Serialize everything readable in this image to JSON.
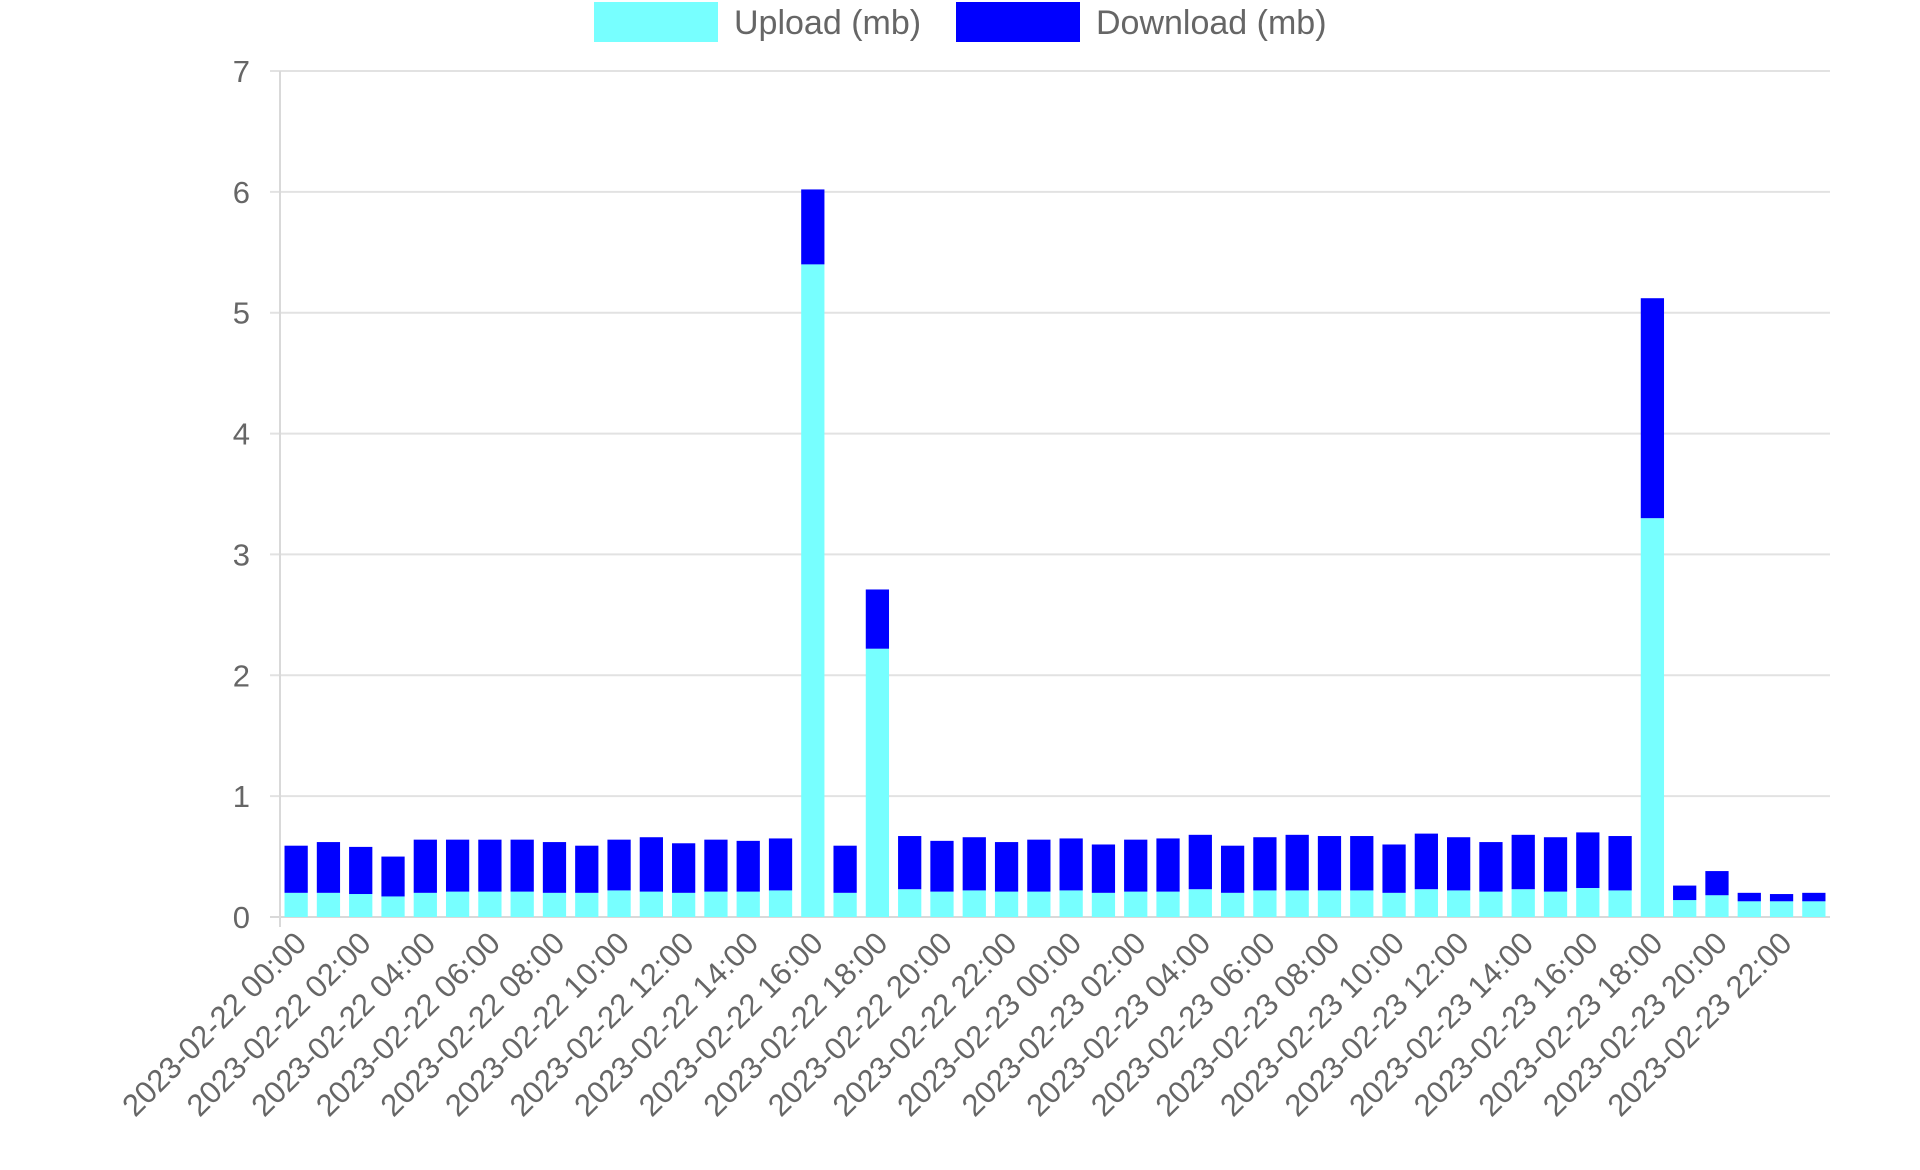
{
  "chart_data": {
    "type": "bar",
    "stacked": true,
    "title": "",
    "xlabel": "",
    "ylabel": "",
    "ylim": [
      0,
      7
    ],
    "yticks": [
      0,
      1,
      2,
      3,
      4,
      5,
      6,
      7
    ],
    "grid": true,
    "legend_position": "top",
    "categories": [
      "2023-02-22 00:00",
      "2023-02-22 01:00",
      "2023-02-22 02:00",
      "2023-02-22 03:00",
      "2023-02-22 04:00",
      "2023-02-22 05:00",
      "2023-02-22 06:00",
      "2023-02-22 07:00",
      "2023-02-22 08:00",
      "2023-02-22 09:00",
      "2023-02-22 10:00",
      "2023-02-22 11:00",
      "2023-02-22 12:00",
      "2023-02-22 13:00",
      "2023-02-22 14:00",
      "2023-02-22 15:00",
      "2023-02-22 16:00",
      "2023-02-22 17:00",
      "2023-02-22 18:00",
      "2023-02-22 19:00",
      "2023-02-22 20:00",
      "2023-02-22 21:00",
      "2023-02-22 22:00",
      "2023-02-22 23:00",
      "2023-02-23 00:00",
      "2023-02-23 01:00",
      "2023-02-23 02:00",
      "2023-02-23 03:00",
      "2023-02-23 04:00",
      "2023-02-23 05:00",
      "2023-02-23 06:00",
      "2023-02-23 07:00",
      "2023-02-23 08:00",
      "2023-02-23 09:00",
      "2023-02-23 10:00",
      "2023-02-23 11:00",
      "2023-02-23 12:00",
      "2023-02-23 13:00",
      "2023-02-23 14:00",
      "2023-02-23 15:00",
      "2023-02-23 16:00",
      "2023-02-23 17:00",
      "2023-02-23 18:00",
      "2023-02-23 19:00",
      "2023-02-23 20:00",
      "2023-02-23 21:00",
      "2023-02-23 22:00",
      "2023-02-23 23:00"
    ],
    "tick_labels_shown": [
      "2023-02-22 00:00",
      "2023-02-22 02:00",
      "2023-02-22 04:00",
      "2023-02-22 06:00",
      "2023-02-22 08:00",
      "2023-02-22 10:00",
      "2023-02-22 12:00",
      "2023-02-22 14:00",
      "2023-02-22 16:00",
      "2023-02-22 18:00",
      "2023-02-22 20:00",
      "2023-02-22 22:00",
      "2023-02-23 00:00",
      "2023-02-23 02:00",
      "2023-02-23 04:00",
      "2023-02-23 06:00",
      "2023-02-23 08:00",
      "2023-02-23 10:00",
      "2023-02-23 12:00",
      "2023-02-23 14:00",
      "2023-02-23 16:00",
      "2023-02-23 18:00",
      "2023-02-23 20:00",
      "2023-02-23 22:00"
    ],
    "series": [
      {
        "name": "Upload (mb)",
        "color": "#77FFFF",
        "values": [
          0.2,
          0.2,
          0.19,
          0.17,
          0.2,
          0.21,
          0.21,
          0.21,
          0.2,
          0.2,
          0.22,
          0.21,
          0.2,
          0.21,
          0.21,
          0.22,
          5.4,
          0.2,
          2.22,
          0.23,
          0.21,
          0.22,
          0.21,
          0.21,
          0.22,
          0.2,
          0.21,
          0.21,
          0.23,
          0.2,
          0.22,
          0.22,
          0.22,
          0.22,
          0.2,
          0.23,
          0.22,
          0.21,
          0.23,
          0.21,
          0.24,
          0.22,
          3.3,
          0.14,
          0.18,
          0.13,
          0.13,
          0.13
        ]
      },
      {
        "name": "Download (mb)",
        "color": "#0000FF",
        "values": [
          0.39,
          0.42,
          0.39,
          0.33,
          0.44,
          0.43,
          0.43,
          0.43,
          0.42,
          0.39,
          0.42,
          0.45,
          0.41,
          0.43,
          0.42,
          0.43,
          0.62,
          0.39,
          0.49,
          0.44,
          0.42,
          0.44,
          0.41,
          0.43,
          0.43,
          0.4,
          0.43,
          0.44,
          0.45,
          0.39,
          0.44,
          0.46,
          0.45,
          0.45,
          0.4,
          0.46,
          0.44,
          0.41,
          0.45,
          0.45,
          0.46,
          0.45,
          1.82,
          0.12,
          0.2,
          0.07,
          0.06,
          0.07
        ]
      }
    ]
  }
}
